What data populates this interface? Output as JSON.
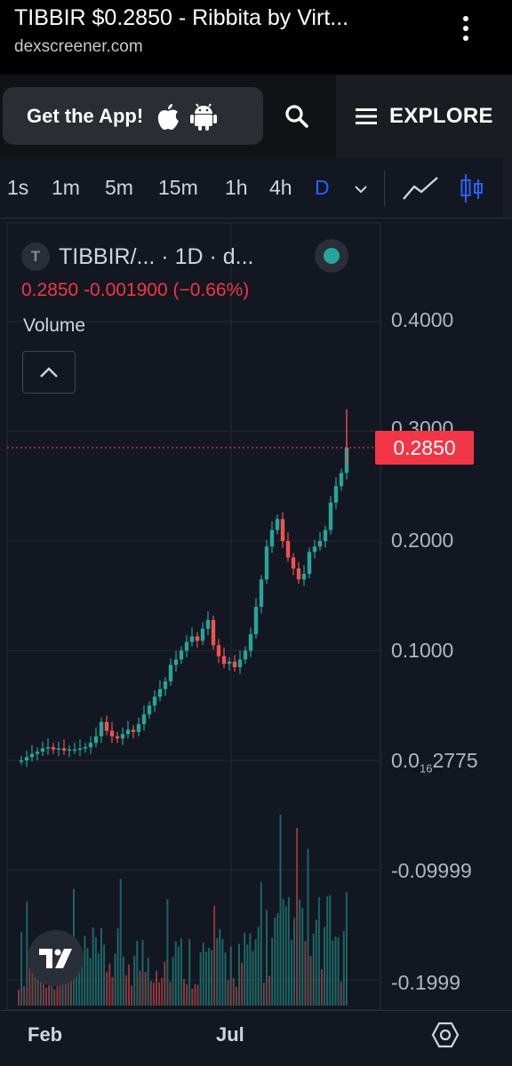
{
  "browser": {
    "title": "TIBBIR $0.2850 - Ribbita by Virt...",
    "url": "dexscreener.com"
  },
  "header": {
    "get_app_label": "Get the App!",
    "explore_label": "EXPLORE"
  },
  "toolbar": {
    "intervals": [
      "1s",
      "1m",
      "5m",
      "15m",
      "1h",
      "4h",
      "D"
    ],
    "active_interval": "D"
  },
  "chart": {
    "symbol_badge": "T",
    "symbol_text": "TIBBIR/... · 1D · d...",
    "ohlc_text": "0.2850 -0.001900 (−0.66%)",
    "volume_label": "Volume",
    "last_price_label": "0.2850",
    "price_axis": [
      "0.4000",
      "0.3000",
      "0.2000",
      "0.1000",
      "-0.09999",
      "-0.1999"
    ],
    "price_axis_subscript": {
      "prefix": "0.0",
      "sub": "16",
      "suffix": "2775"
    },
    "time_axis": [
      "Feb",
      "Jul"
    ]
  },
  "colors": {
    "up": "#26a69a",
    "down": "#ef5350",
    "accent": "#2962ff",
    "last_price": "#f23645",
    "background": "#131722"
  },
  "chart_data": {
    "type": "candlestick",
    "interval": "1D",
    "symbol": "TIBBIR",
    "ylim": [
      -0.2,
      0.4
    ],
    "x_ticks": [
      "Feb",
      "Jul"
    ],
    "last_price": 0.285,
    "change": -0.0019,
    "change_pct": -0.66,
    "close_trend": [
      0.0,
      0.003,
      0.006,
      0.008,
      0.011,
      0.012,
      0.01,
      0.011,
      0.009,
      0.01,
      0.01,
      0.011,
      0.012,
      0.016,
      0.022,
      0.035,
      0.027,
      0.022,
      0.02,
      0.024,
      0.028,
      0.026,
      0.033,
      0.042,
      0.05,
      0.058,
      0.065,
      0.072,
      0.087,
      0.092,
      0.1,
      0.108,
      0.113,
      0.109,
      0.12,
      0.128,
      0.105,
      0.095,
      0.088,
      0.09,
      0.085,
      0.092,
      0.1,
      0.115,
      0.14,
      0.165,
      0.195,
      0.21,
      0.22,
      0.2,
      0.185,
      0.175,
      0.165,
      0.17,
      0.19,
      0.195,
      0.2,
      0.21,
      0.235,
      0.25,
      0.262,
      0.285
    ]
  }
}
